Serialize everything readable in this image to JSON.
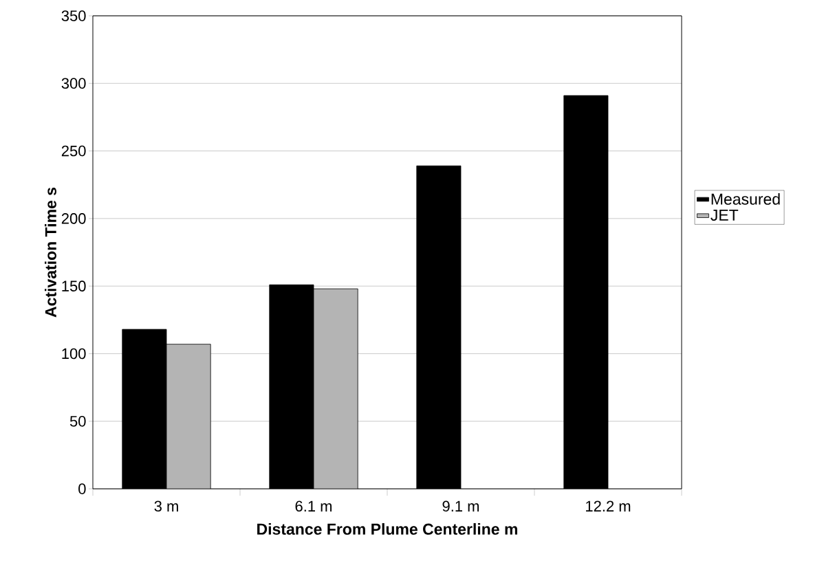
{
  "chart_data": {
    "type": "bar",
    "xlabel": "Distance From Plume Centerline m",
    "ylabel": "Activation Time s",
    "categories": [
      "3 m",
      "6.1 m",
      "9.1 m",
      "12.2 m"
    ],
    "series": [
      {
        "name": "Measured",
        "color": "#000000",
        "values": [
          118,
          151,
          239,
          291
        ]
      },
      {
        "name": "JET",
        "color": "#b4b4b4",
        "values": [
          107,
          148,
          null,
          null
        ]
      }
    ],
    "ylim": [
      0,
      350
    ],
    "yticks": [
      0,
      50,
      100,
      150,
      200,
      250,
      300,
      350
    ],
    "grid": "y",
    "legend": "right"
  }
}
